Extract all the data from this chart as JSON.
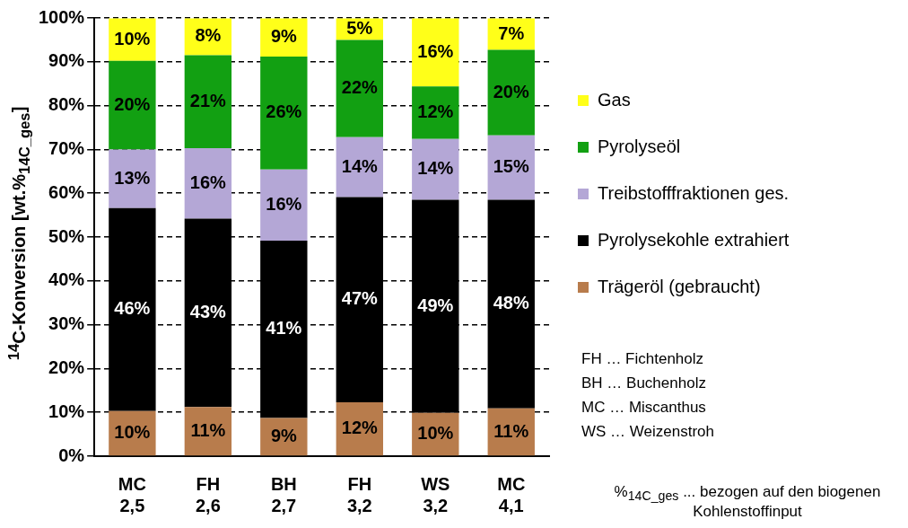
{
  "chart_data": {
    "type": "bar",
    "stacked": true,
    "ylabel": "$^{14}$C-Konversion [wt.%$_{14C_ges}$]",
    "categories": [
      "MC\n2,5",
      "FH\n2,6",
      "BH\n2,7",
      "FH\n3,2",
      "WS\n3,2",
      "MC\n4,1"
    ],
    "series": [
      {
        "name": "Trägeröl (gebraucht)",
        "color": "#b87c4c",
        "values": [
          10.3,
          11.2,
          8.7,
          12.3,
          9.9,
          10.9
        ],
        "value_labels": [
          "10%",
          "11%",
          "9%",
          "12%",
          "10%",
          "11%"
        ]
      },
      {
        "name": "Pyrolysekohle extrahiert",
        "color": "#000000",
        "values": [
          46.3,
          43,
          40.5,
          46.8,
          48.6,
          47.6
        ],
        "value_labels": [
          "46%",
          "43%",
          "41%",
          "47%",
          "49%",
          "48%"
        ]
      },
      {
        "name": "Treibstofffraktionen ges.",
        "color": "#b4a7d6",
        "values": [
          13.4,
          16.1,
          16.2,
          13.7,
          13.9,
          14.7
        ],
        "value_labels": [
          "13%",
          "16%",
          "16%",
          "14%",
          "14%",
          "15%"
        ]
      },
      {
        "name": "Pyrolyseöl",
        "color": "#12a012",
        "values": [
          20.2,
          21.2,
          25.8,
          22.2,
          12,
          19.5
        ],
        "value_labels": [
          "20%",
          "21%",
          "26%",
          "22%",
          "12%",
          "20%"
        ]
      },
      {
        "name": "Gas",
        "color": "#ffff19",
        "values": [
          9.7,
          8.4,
          8.7,
          4.9,
          15.5,
          7.2
        ],
        "value_labels": [
          "10%",
          "8%",
          "9%",
          "5%",
          "16%",
          "7%"
        ]
      }
    ],
    "ylim": [
      0,
      100
    ],
    "yticks": [
      {
        "value": 0,
        "label": "0%"
      },
      {
        "value": 10,
        "label": "10%"
      },
      {
        "value": 20,
        "label": "20%"
      },
      {
        "value": 30,
        "label": "30%"
      },
      {
        "value": 40,
        "label": "40%"
      },
      {
        "value": 50,
        "label": "50%"
      },
      {
        "value": 60,
        "label": "60%"
      },
      {
        "value": 70,
        "label": "70%"
      },
      {
        "value": 80,
        "label": "80%"
      },
      {
        "value": 90,
        "label": "90%"
      },
      {
        "value": 100,
        "label": "100%"
      }
    ],
    "grid": "y",
    "legend": "right",
    "annotations": [
      "FH … Fichtenholz",
      "BH … Buchenholz",
      "MC … Miscanthus",
      "WS … Weizenstroh",
      "%$_{14C_ges}$ ... bezogen auf den biogenen Kohlenstoffinput"
    ]
  }
}
